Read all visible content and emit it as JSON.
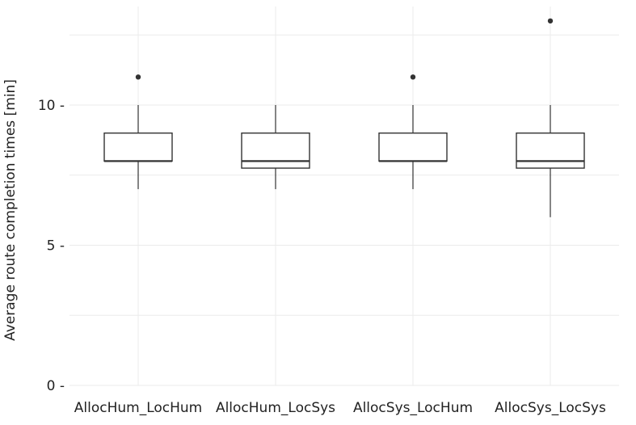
{
  "chart_data": {
    "type": "box",
    "title": "",
    "xlabel": "",
    "ylabel": "Average route completion times [min]",
    "ylim": [
      0,
      13.5
    ],
    "yticks": [
      0,
      5,
      10
    ],
    "ytick_labels": [
      "0 -",
      "5 -",
      "10 -"
    ],
    "grid": true,
    "categories": [
      "AllocHum_LocHum",
      "AllocHum_LocSys",
      "AllocSys_LocHum",
      "AllocSys_LocSys"
    ],
    "boxes": [
      {
        "category": "AllocHum_LocHum",
        "whisker_low": 7,
        "q1": 8,
        "median": 8,
        "q3": 9,
        "whisker_high": 10,
        "outliers": [
          11
        ]
      },
      {
        "category": "AllocHum_LocSys",
        "whisker_low": 7,
        "q1": 7.75,
        "median": 8,
        "q3": 9,
        "whisker_high": 10,
        "outliers": []
      },
      {
        "category": "AllocSys_LocHum",
        "whisker_low": 7,
        "q1": 8,
        "median": 8,
        "q3": 9,
        "whisker_high": 10,
        "outliers": [
          11
        ]
      },
      {
        "category": "AllocSys_LocSys",
        "whisker_low": 6,
        "q1": 7.75,
        "median": 8,
        "q3": 9,
        "whisker_high": 10,
        "outliers": [
          13
        ]
      }
    ],
    "colors": {
      "background": "#ffffff",
      "grid": "#ebebeb",
      "box_stroke": "#333333",
      "point": "#333333",
      "text": "#222222"
    }
  }
}
